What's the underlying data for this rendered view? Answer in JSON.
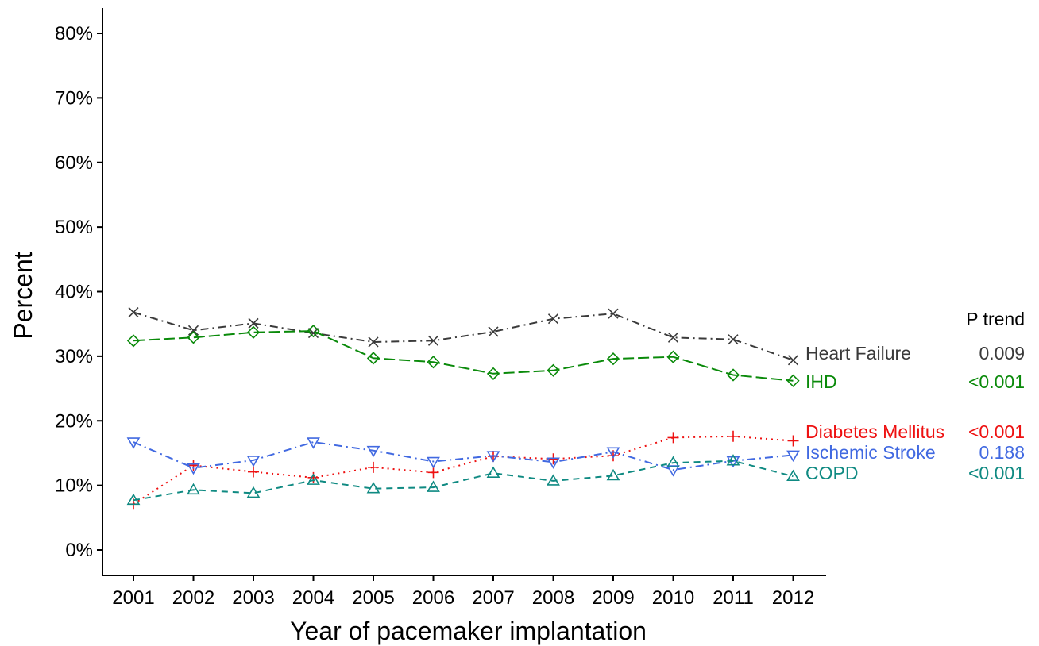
{
  "chart_data": {
    "type": "line",
    "title": "",
    "xlabel": "Year of pacemaker implantation",
    "ylabel": "Percent",
    "x": [
      2001,
      2002,
      2003,
      2004,
      2005,
      2006,
      2007,
      2008,
      2009,
      2010,
      2011,
      2012
    ],
    "x_tick_labels": [
      "2001",
      "2002",
      "2003",
      "2004",
      "2005",
      "2006",
      "2007",
      "2008",
      "2009",
      "2010",
      "2011",
      "2012"
    ],
    "ylim": [
      0,
      80
    ],
    "y_ticks": [
      0,
      10,
      20,
      30,
      40,
      50,
      60,
      70,
      80
    ],
    "y_tick_labels": [
      "0%",
      "10%",
      "20%",
      "30%",
      "40%",
      "50%",
      "60%",
      "70%",
      "80%"
    ],
    "grid": false,
    "p_trend_header": "P trend",
    "series": [
      {
        "name": "Heart Failure",
        "color": "#3a3a3a",
        "marker": "x",
        "dash": "dashdot",
        "p_trend": "0.009",
        "values": [
          36.8,
          34.0,
          35.1,
          33.6,
          32.2,
          32.4,
          33.8,
          35.8,
          36.6,
          32.9,
          32.6,
          29.4
        ]
      },
      {
        "name": "IHD",
        "color": "#0a8a0a",
        "marker": "diamond",
        "dash": "longdash",
        "p_trend": "<0.001",
        "values": [
          32.4,
          32.9,
          33.7,
          33.9,
          29.7,
          29.1,
          27.3,
          27.8,
          29.6,
          29.9,
          27.1,
          26.2
        ]
      },
      {
        "name": "Diabetes Mellitus",
        "color": "#ee1111",
        "marker": "plus",
        "dash": "dotted",
        "p_trend": "<0.001",
        "values": [
          7.1,
          13.1,
          12.1,
          11.2,
          12.8,
          12.0,
          14.5,
          14.1,
          14.6,
          17.4,
          17.6,
          16.9
        ]
      },
      {
        "name": "Ischemic Stroke",
        "color": "#4169e1",
        "marker": "triangle-down",
        "dash": "dashdot",
        "p_trend": "0.188",
        "values": [
          16.7,
          12.7,
          13.9,
          16.7,
          15.4,
          13.7,
          14.6,
          13.6,
          15.2,
          12.4,
          13.8,
          14.7
        ]
      },
      {
        "name": "COPD",
        "color": "#0f8a82",
        "marker": "triangle-up",
        "dash": "dashed",
        "p_trend": "<0.001",
        "values": [
          7.7,
          9.3,
          8.8,
          10.8,
          9.5,
          9.7,
          11.9,
          10.7,
          11.5,
          13.5,
          13.8,
          11.4
        ]
      }
    ]
  }
}
